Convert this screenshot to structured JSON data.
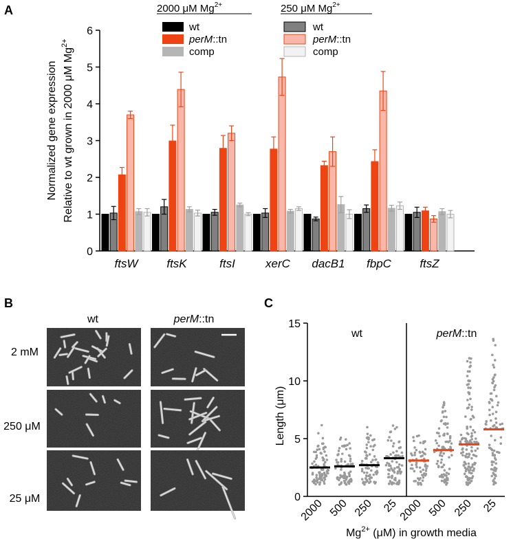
{
  "panel_labels": {
    "a": "A",
    "b": "B",
    "c": "C"
  },
  "panel_a": {
    "ylabel_line1": "Normalized gene expression",
    "ylabel_line2_pre": "Relative to wt  grown in 2000 ",
    "ylabel_unit": "μM Mg",
    "ylabel_sup": "2+",
    "legend_group1_title_pre": "2000 μM Mg",
    "legend_group1_title_sup": "2+",
    "legend_group2_title_pre": "250 μM Mg",
    "legend_group2_title_sup": "2+",
    "legend_items": {
      "wt": "wt",
      "perm_italic": "perM",
      "perm_suffix": "::tn",
      "comp": "comp"
    },
    "colors": {
      "wt_2000": "#000000",
      "wt_250": "#808080",
      "perm_2000": "#ee4413",
      "perm_250": "#f9b7aa",
      "comp_2000": "#b5b5b5",
      "comp_250": "#f2f2f2"
    }
  },
  "chart_data": [
    {
      "type": "bar",
      "categories": [
        "ftsW",
        "ftsK",
        "ftsI",
        "xerC",
        "dacB1",
        "fbpC",
        "ftsZ"
      ],
      "ylim": [
        0,
        6
      ],
      "yticks": [
        0,
        1,
        2,
        3,
        4,
        5,
        6
      ],
      "series": [
        {
          "name": "wt 2000 μM Mg2+",
          "values": [
            1,
            1,
            1,
            1,
            1,
            1,
            1
          ],
          "errors": [
            0,
            0,
            0,
            0,
            0,
            0,
            0
          ]
        },
        {
          "name": "wt 250 μM Mg2+",
          "values": [
            1.03,
            1.2,
            1.05,
            1.03,
            0.87,
            1.15,
            1.05
          ],
          "errors": [
            0.18,
            0.2,
            0.08,
            0.12,
            0.05,
            0.1,
            0.14
          ]
        },
        {
          "name": "perM::tn 2000 μM Mg2+",
          "values": [
            2.07,
            2.99,
            2.79,
            2.77,
            2.32,
            2.43,
            1.09
          ],
          "errors": [
            0.2,
            0.43,
            0.35,
            0.33,
            0.12,
            0.32,
            0.1
          ]
        },
        {
          "name": "perM::tn 250 μM Mg2+",
          "values": [
            3.7,
            4.39,
            3.2,
            4.73,
            2.7,
            4.35,
            0.87
          ],
          "errors": [
            0.1,
            0.47,
            0.2,
            0.5,
            0.4,
            0.53,
            0.09
          ]
        },
        {
          "name": "comp 2000 μM Mg2+",
          "values": [
            1.07,
            1.13,
            1.25,
            1.08,
            1.26,
            1.16,
            1.07
          ],
          "errors": [
            0.08,
            0.07,
            0.05,
            0.05,
            0.22,
            0.08,
            0.08
          ]
        },
        {
          "name": "comp 250 μM Mg2+",
          "values": [
            1.05,
            1.03,
            1.0,
            1.15,
            1.0,
            1.23,
            1.0
          ],
          "errors": [
            0.1,
            0.08,
            0.04,
            0.05,
            0.12,
            0.1,
            0.1
          ]
        }
      ]
    },
    {
      "type": "scatter",
      "title_groups": [
        "wt",
        "perM::tn"
      ],
      "xlabel_pre": "Mg",
      "xlabel_sup": "2+",
      "xlabel_post": " (μM) in growth media",
      "ylabel": "Length (μm)",
      "ylim": [
        0,
        15
      ],
      "yticks": [
        0,
        5,
        10,
        15
      ],
      "categories": [
        "2000",
        "500",
        "250",
        "25",
        "2000",
        "500",
        "250",
        "25"
      ],
      "medians": [
        2.5,
        2.6,
        2.7,
        3.3,
        3.1,
        4.0,
        4.5,
        5.8
      ],
      "max_values": [
        6.2,
        5.5,
        6.0,
        6.3,
        5.3,
        8.3,
        12.0,
        14.0
      ],
      "point_counts": [
        90,
        90,
        80,
        85,
        70,
        100,
        150,
        100
      ],
      "median_colors": [
        "#000000",
        "#000000",
        "#000000",
        "#000000",
        "#ee4413",
        "#ee4413",
        "#ee4413",
        "#ee4413"
      ]
    }
  ],
  "panel_b": {
    "col_labels": {
      "wt": "wt",
      "perm_italic": "perM",
      "perm_suffix": "::tn"
    },
    "row_labels": [
      "2 mM",
      "250 μM",
      "25 μM"
    ]
  },
  "panel_c": {
    "group_wt": "wt",
    "group_perm_italic": "perM",
    "group_perm_suffix": "::tn"
  }
}
